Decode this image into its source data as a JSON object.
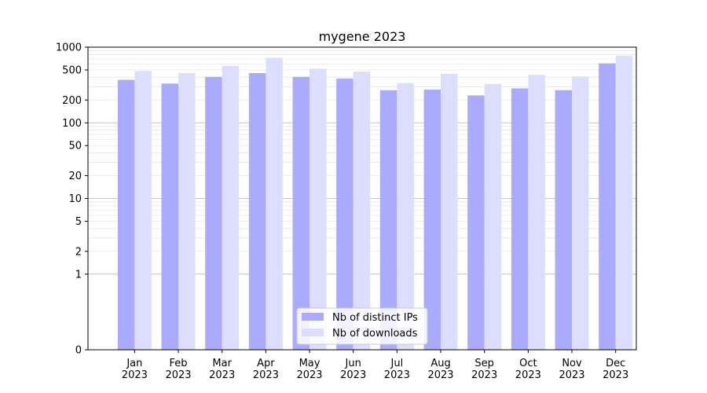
{
  "chart_data": {
    "type": "bar",
    "title": "mygene 2023",
    "xlabel": "",
    "ylabel": "",
    "scale": "symlog",
    "ylim": [
      0,
      1000
    ],
    "yticks": [
      0,
      1,
      2,
      5,
      10,
      20,
      50,
      100,
      200,
      500,
      1000
    ],
    "ytick_labels": [
      "0",
      "1",
      "2",
      "5",
      "10",
      "20",
      "50",
      "100",
      "200",
      "500",
      "1000"
    ],
    "categories": [
      "Jan\n2023",
      "Feb\n2023",
      "Mar\n2023",
      "Apr\n2023",
      "May\n2023",
      "Jun\n2023",
      "Jul\n2023",
      "Aug\n2023",
      "Sep\n2023",
      "Oct\n2023",
      "Nov\n2023",
      "Dec\n2023"
    ],
    "series": [
      {
        "name": "Nb of distinct IPs",
        "color": "#aaaaff",
        "values": [
          370,
          330,
          405,
          455,
          405,
          385,
          270,
          275,
          230,
          285,
          270,
          610
        ]
      },
      {
        "name": "Nb of downloads",
        "color": "#ddddff",
        "values": [
          485,
          455,
          565,
          725,
          520,
          475,
          335,
          445,
          325,
          430,
          410,
          770
        ]
      }
    ],
    "legend_position": "lower-center",
    "grid": true
  }
}
